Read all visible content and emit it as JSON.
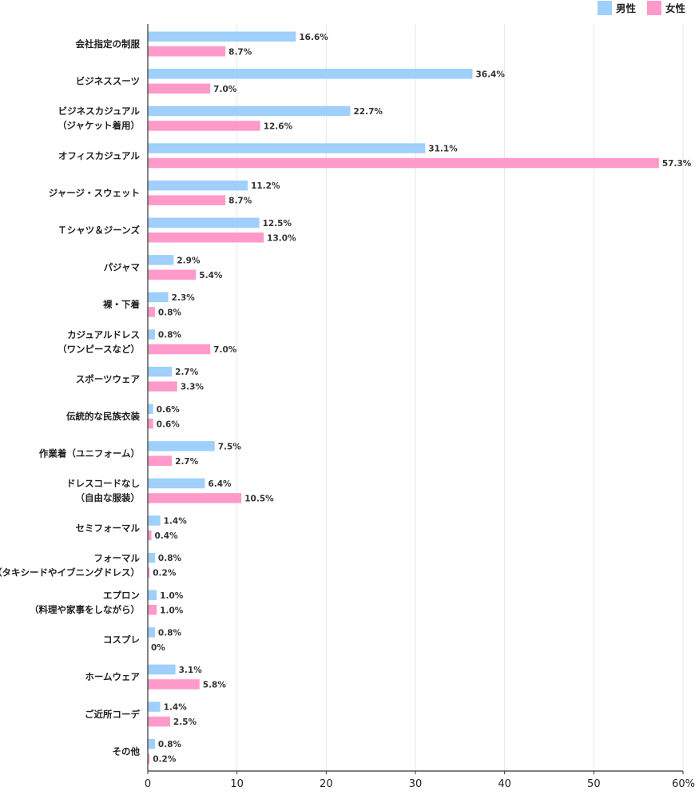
{
  "chart_data": {
    "type": "bar",
    "orientation": "horizontal",
    "legend": {
      "placement": "top-right"
    },
    "series": [
      {
        "name": "男性",
        "color": "#9FCFFB",
        "values": [
          16.6,
          36.4,
          22.7,
          31.1,
          11.2,
          12.5,
          2.9,
          2.3,
          0.8,
          2.7,
          0.6,
          7.5,
          6.4,
          1.4,
          0.8,
          1.0,
          0.8,
          3.1,
          1.4,
          0.8
        ],
        "labels": [
          "16.6%",
          "36.4%",
          "22.7%",
          "31.1%",
          "11.2%",
          "12.5%",
          "2.9%",
          "2.3%",
          "0.8%",
          "2.7%",
          "0.6%",
          "7.5%",
          "6.4%",
          "1.4%",
          "0.8%",
          "1.0%",
          "0.8%",
          "3.1%",
          "1.4%",
          "0.8%"
        ]
      },
      {
        "name": "女性",
        "color": "#FE9ACA",
        "values": [
          8.7,
          7.0,
          12.6,
          57.3,
          8.7,
          13.0,
          5.4,
          0.8,
          7.0,
          3.3,
          0.6,
          2.7,
          10.5,
          0.4,
          0.2,
          1.0,
          0,
          5.8,
          2.5,
          0.2
        ],
        "labels": [
          "8.7%",
          "7.0%",
          "12.6%",
          "57.3%",
          "8.7%",
          "13.0%",
          "5.4%",
          "0.8%",
          "7.0%",
          "3.3%",
          "0.6%",
          "2.7%",
          "10.5%",
          "0.4%",
          "0.2%",
          "1.0%",
          "0%",
          "5.8%",
          "2.5%",
          "0.2%"
        ]
      }
    ],
    "categories": [
      [
        "会社指定の制服"
      ],
      [
        "ビジネススーツ"
      ],
      [
        "ビジネスカジュアル",
        "（ジャケット着用）"
      ],
      [
        "オフィスカジュアル"
      ],
      [
        "ジャージ・スウェット"
      ],
      [
        "Ｔシャツ＆ジーンズ"
      ],
      [
        "パジャマ"
      ],
      [
        "裸・下着"
      ],
      [
        "カジュアルドレス",
        "（ワンピースなど）"
      ],
      [
        "スポーツウェア"
      ],
      [
        "伝統的な民族衣装"
      ],
      [
        "作業着（ユニフォーム）"
      ],
      [
        "ドレスコードなし",
        "（自由な服装）"
      ],
      [
        "セミフォーマル"
      ],
      [
        "フォーマル",
        "（タキシードやイブニングドレス）"
      ],
      [
        "エプロン",
        "（料理や家事をしながら）"
      ],
      [
        "コスプレ"
      ],
      [
        "ホームウェア"
      ],
      [
        "ご近所コーデ"
      ],
      [
        "その他"
      ]
    ],
    "xlim": [
      0,
      60
    ],
    "xticks": [
      {
        "value": 0,
        "label": "0"
      },
      {
        "value": 10,
        "label": "10"
      },
      {
        "value": 20,
        "label": "20"
      },
      {
        "value": 30,
        "label": "30"
      },
      {
        "value": 40,
        "label": "40"
      },
      {
        "value": 50,
        "label": "50"
      },
      {
        "value": 60,
        "label": "60%"
      }
    ],
    "grid": true,
    "gridColor": "#e6e6e6",
    "axisColor": "#333333"
  }
}
